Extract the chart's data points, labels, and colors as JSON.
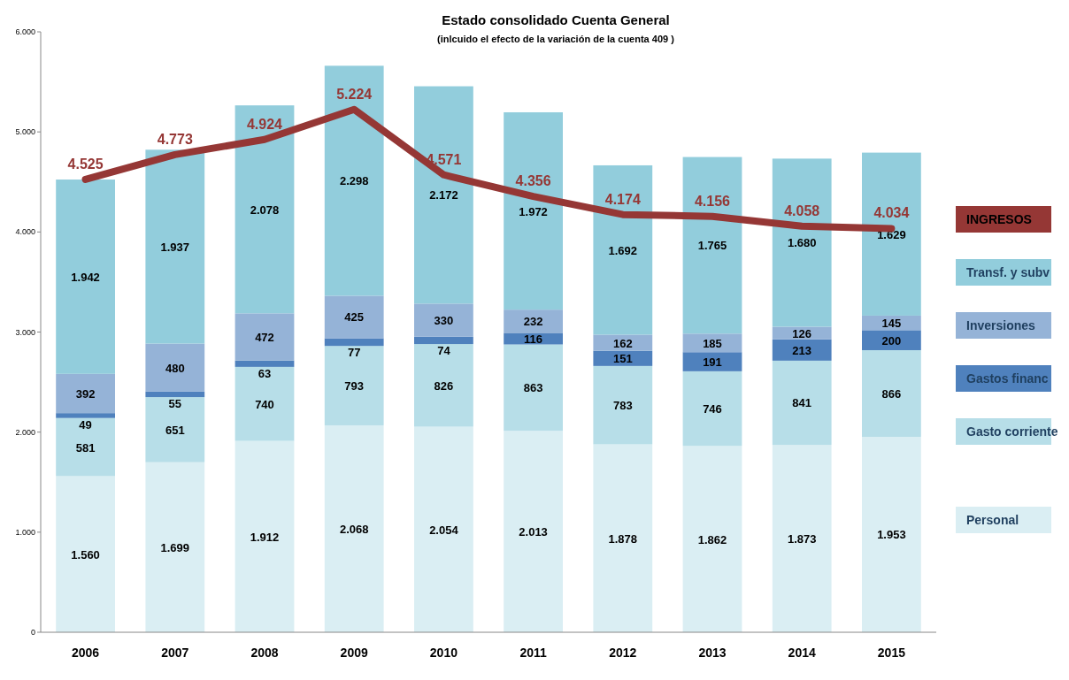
{
  "chart_data": {
    "type": "bar",
    "title": "Estado consolidado Cuenta General",
    "subtitle": "(inlcuido el efecto de la variación  de la cuenta 409 )",
    "categories": [
      "2006",
      "2007",
      "2008",
      "2009",
      "2010",
      "2011",
      "2012",
      "2013",
      "2014",
      "2015"
    ],
    "stacked": true,
    "legend": "right",
    "ylim": [
      0,
      6000
    ],
    "yticks": [
      {
        "value": 0,
        "label": "0"
      },
      {
        "value": 1000,
        "label": "1.000"
      },
      {
        "value": 2000,
        "label": "2.000"
      },
      {
        "value": 3000,
        "label": "3.000"
      },
      {
        "value": 4000,
        "label": "4.000"
      },
      {
        "value": 5000,
        "label": "5.000"
      },
      {
        "value": 6000,
        "label": "6.000"
      }
    ],
    "series": [
      {
        "name": "Personal",
        "color": "#daeef3",
        "values": [
          1560,
          1699,
          1912,
          2068,
          2054,
          2013,
          1878,
          1862,
          1873,
          1953
        ],
        "value_labels": [
          "1.560",
          "1.699",
          "1.912",
          "2.068",
          "2.054",
          "2.013",
          "1.878",
          "1.862",
          "1.873",
          "1.953"
        ]
      },
      {
        "name": "Gasto corriente",
        "color": "#b7dee8",
        "values": [
          581,
          651,
          740,
          793,
          826,
          863,
          783,
          746,
          841,
          866
        ],
        "value_labels": [
          "581",
          "651",
          "740",
          "793",
          "826",
          "863",
          "783",
          "746",
          "841",
          "866"
        ]
      },
      {
        "name": "Gastos  financ",
        "color": "#4f81bd",
        "values": [
          49,
          55,
          63,
          77,
          74,
          116,
          151,
          191,
          213,
          200
        ],
        "value_labels": [
          "49",
          "55",
          "63",
          "77",
          "74",
          "116",
          "151",
          "191",
          "213",
          "200"
        ]
      },
      {
        "name": "Inversiones",
        "color": "#95b3d7",
        "values": [
          392,
          480,
          472,
          425,
          330,
          232,
          162,
          185,
          126,
          145
        ],
        "value_labels": [
          "392",
          "480",
          "472",
          "425",
          "330",
          "232",
          "162",
          "185",
          "126",
          "145"
        ]
      },
      {
        "name": "Transf. y subv",
        "color": "#92cddc",
        "values": [
          1942,
          1937,
          2078,
          2298,
          2172,
          1972,
          1692,
          1765,
          1680,
          1629
        ],
        "value_labels": [
          "1.942",
          "1.937",
          "2.078",
          "2.298",
          "2.172",
          "1.972",
          "1.692",
          "1.765",
          "1.680",
          "1.629"
        ]
      },
      {
        "name": "INGRESOS",
        "type": "line",
        "color": "#953735",
        "marker": "none",
        "line_style": "solid",
        "values": [
          4525,
          4773,
          4924,
          5224,
          4571,
          4356,
          4174,
          4156,
          4058,
          4034
        ],
        "value_labels": [
          "4.525",
          "4.773",
          "4.924",
          "5.224",
          "4.571",
          "4.356",
          "4.174",
          "4.156",
          "4.058",
          "4.034"
        ]
      }
    ]
  }
}
